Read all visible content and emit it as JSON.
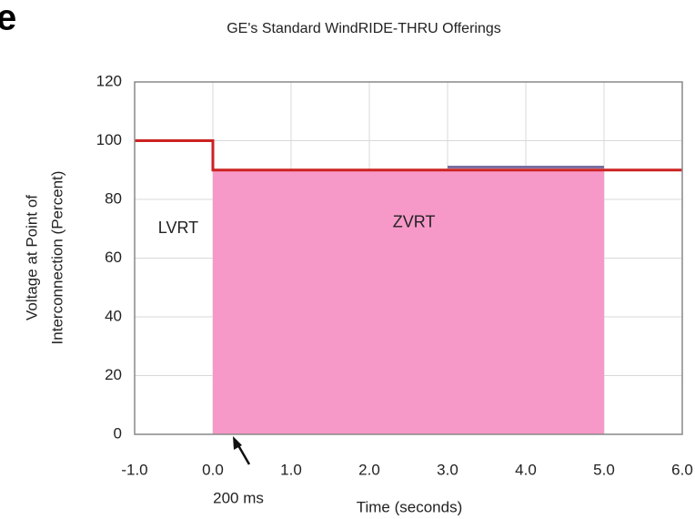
{
  "panel_label": "e",
  "chart_data": {
    "type": "line",
    "title": "GE's Standard WindRIDE-THRU Offerings",
    "x_label": "Time (seconds)",
    "y_label": [
      "Voltage at Point of",
      "Interconnection (Percent)"
    ],
    "annotation": "200 ms",
    "xlim": [
      -1,
      6
    ],
    "ylim": [
      0,
      120
    ],
    "xticks": [
      {
        "value": -1,
        "label": "-1.0"
      },
      {
        "value": 0,
        "label": "0.0"
      },
      {
        "value": 1,
        "label": "1.0"
      },
      {
        "value": 2,
        "label": "2.0"
      },
      {
        "value": 3,
        "label": "3.0"
      },
      {
        "value": 4,
        "label": "4.0"
      },
      {
        "value": 5,
        "label": "5.0"
      },
      {
        "value": 6,
        "label": "6.0"
      }
    ],
    "yticks": [
      0,
      20,
      40,
      60,
      80,
      100,
      120
    ],
    "grid": true,
    "series": [
      {
        "name": "LVRT",
        "kind": "area",
        "color": "#f799c8",
        "x": [
          0,
          5
        ],
        "values": [
          90,
          90
        ]
      },
      {
        "name": "ZVRT",
        "kind": "line",
        "color": "#7a6fa0",
        "x": [
          3,
          5
        ],
        "values": [
          91,
          91
        ]
      },
      {
        "kind": "line",
        "color": "#cc2222",
        "x": [
          -1,
          0,
          0,
          6
        ],
        "values": [
          100,
          100,
          90,
          90
        ]
      }
    ]
  }
}
